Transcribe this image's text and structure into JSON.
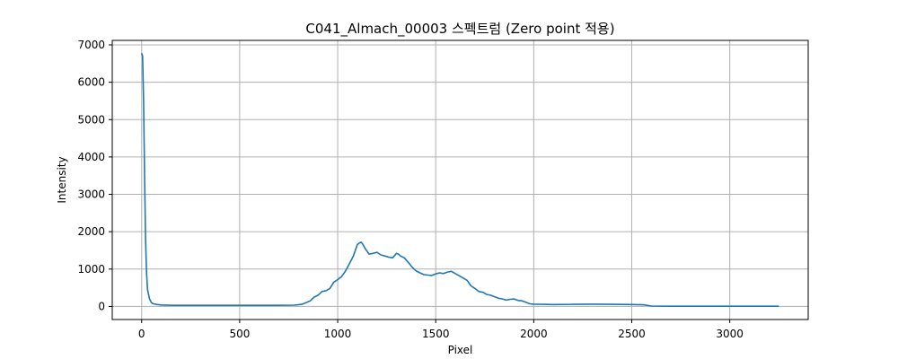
{
  "chart_data": {
    "type": "line",
    "title": "C041_Almach_00003 스펙트럼 (Zero point 적용)",
    "xlabel": "Pixel",
    "ylabel": "Intensity",
    "xlim": [
      -150,
      3400
    ],
    "ylim": [
      -350,
      7120
    ],
    "xticks": [
      0,
      500,
      1000,
      1500,
      2000,
      2500,
      3000
    ],
    "yticks": [
      0,
      1000,
      2000,
      3000,
      4000,
      5000,
      6000,
      7000
    ],
    "grid": true,
    "line_color": "#1f77b4",
    "series": [
      {
        "x": [
          0,
          5,
          10,
          15,
          20,
          25,
          30,
          40,
          50,
          60,
          80,
          100,
          150,
          200,
          300,
          400,
          500,
          600,
          700,
          780,
          820,
          860,
          880,
          900,
          920,
          940,
          960,
          980,
          1000,
          1020,
          1040,
          1060,
          1080,
          1100,
          1110,
          1120,
          1130,
          1140,
          1160,
          1180,
          1200,
          1220,
          1240,
          1260,
          1280,
          1300,
          1310,
          1320,
          1340,
          1360,
          1380,
          1400,
          1420,
          1440,
          1460,
          1480,
          1500,
          1520,
          1540,
          1560,
          1580,
          1600,
          1620,
          1640,
          1660,
          1680,
          1700,
          1720,
          1740,
          1760,
          1780,
          1800,
          1820,
          1840,
          1860,
          1880,
          1900,
          1920,
          1940,
          1960,
          1980,
          2000,
          2050,
          2100,
          2200,
          2300,
          2400,
          2500,
          2560,
          2600,
          2700,
          3000,
          3250
        ],
        "y": [
          6780,
          6700,
          5500,
          3500,
          1800,
          900,
          450,
          200,
          100,
          70,
          50,
          40,
          30,
          30,
          30,
          30,
          30,
          30,
          30,
          35,
          60,
          150,
          250,
          300,
          400,
          420,
          480,
          650,
          720,
          800,
          950,
          1150,
          1350,
          1650,
          1700,
          1720,
          1650,
          1550,
          1400,
          1420,
          1450,
          1380,
          1350,
          1320,
          1300,
          1420,
          1400,
          1350,
          1300,
          1180,
          1050,
          950,
          900,
          850,
          840,
          830,
          870,
          900,
          880,
          920,
          940,
          880,
          820,
          760,
          700,
          550,
          480,
          400,
          380,
          320,
          300,
          260,
          220,
          200,
          170,
          190,
          200,
          160,
          150,
          110,
          70,
          60,
          55,
          50,
          55,
          60,
          55,
          50,
          45,
          10,
          5,
          5,
          5
        ]
      }
    ]
  }
}
